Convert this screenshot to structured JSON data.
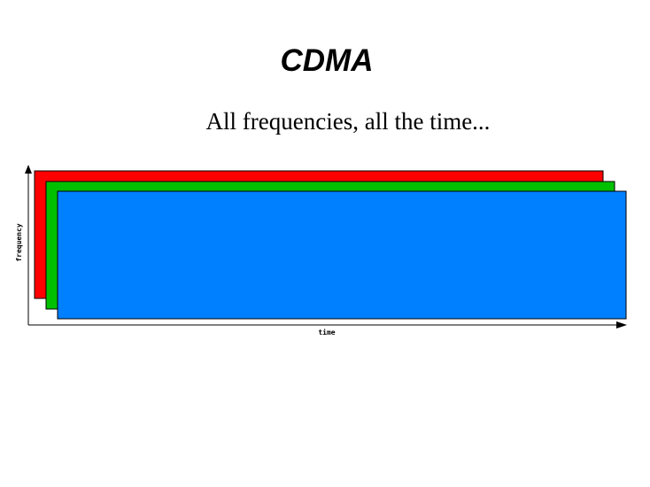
{
  "slide": {
    "title": "CDMA",
    "subtitle": "All frequencies, all the time..."
  },
  "diagram": {
    "x_axis_label": "time",
    "y_axis_label": "frequency",
    "bands": [
      {
        "name": "red",
        "color": "#ff0000"
      },
      {
        "name": "green",
        "color": "#00c000"
      },
      {
        "name": "blue",
        "color": "#0080ff"
      }
    ]
  }
}
